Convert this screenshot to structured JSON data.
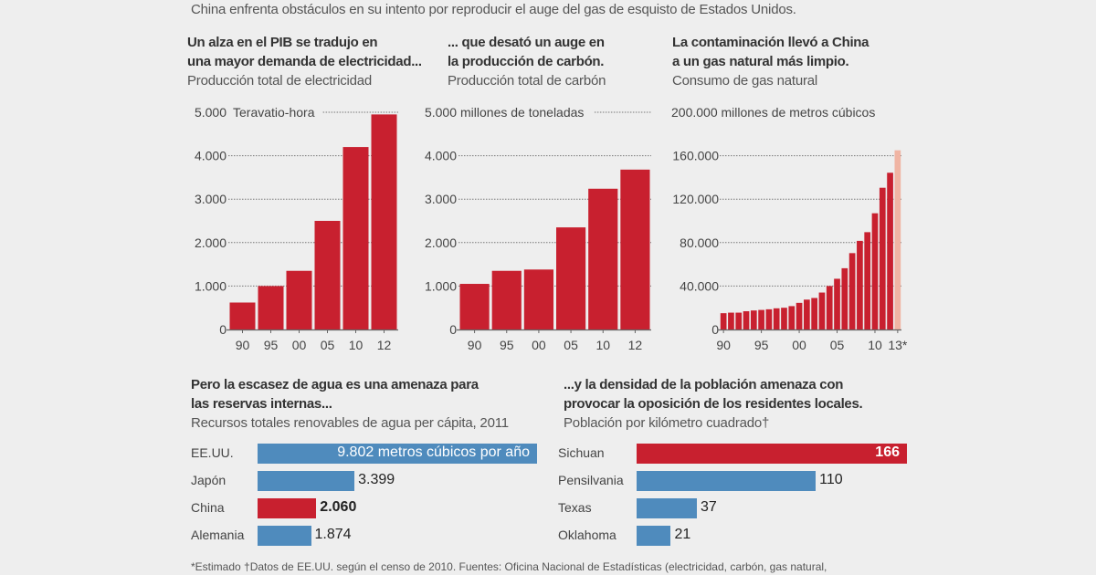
{
  "subhead": "China enfrenta obstáculos en su intento por reproducir el auge del gas de esquisto de Estados Unidos.",
  "colors": {
    "red": "#c8202f",
    "red_light": "#f0b4a3",
    "blue": "#4f8bbd",
    "grid": "#777777",
    "text": "#333333"
  },
  "chart_data": [
    {
      "type": "bar",
      "title": "Un alza en el PIB se tradujo en una mayor demanda de electricidad...",
      "title_lines": [
        "Un alza en el PIB se tradujo en",
        "una mayor demanda de electricidad..."
      ],
      "subtitle": "Producción total de electricidad",
      "unit_label": "Teravatio-hora",
      "categories": [
        "90",
        "95",
        "00",
        "05",
        "10",
        "12"
      ],
      "values": [
        620,
        1000,
        1350,
        2500,
        4200,
        4950
      ],
      "yticks": [
        "0",
        "1.000",
        "2.000",
        "3.000",
        "4.000",
        "5.000"
      ],
      "ytick_values": [
        0,
        1000,
        2000,
        3000,
        4000,
        5000
      ],
      "ylim": [
        0,
        5000
      ],
      "grid": true,
      "xlabel": "",
      "ylabel": "Teravatio-hora"
    },
    {
      "type": "bar",
      "title": "... que desató un auge en la producción de carbón.",
      "title_lines": [
        "... que desató un auge en",
        "la producción de carbón."
      ],
      "subtitle": "Producción total de carbón",
      "unit_label": "millones de toneladas",
      "categories": [
        "90",
        "95",
        "00",
        "05",
        "10",
        "12"
      ],
      "values": [
        1050,
        1350,
        1380,
        2350,
        3240,
        3680
      ],
      "yticks": [
        "0",
        "1.000",
        "2.000",
        "3.000",
        "4.000",
        "5.000"
      ],
      "ytick_values": [
        0,
        1000,
        2000,
        3000,
        4000,
        5000
      ],
      "ylim": [
        0,
        5000
      ],
      "grid": true,
      "xlabel": "",
      "ylabel": "millones de toneladas"
    },
    {
      "type": "bar",
      "title": "La contaminación llevó a China a un gas natural más limpio.",
      "title_lines": [
        "La contaminación llevó a China",
        "a un gas natural más limpio."
      ],
      "subtitle": "Consumo de gas natural",
      "unit_label": "millones de metros cúbicos",
      "categories": [
        "1990",
        "1991",
        "1992",
        "1993",
        "1994",
        "1995",
        "1996",
        "1997",
        "1998",
        "1999",
        "2000",
        "2001",
        "2002",
        "2003",
        "2004",
        "2005",
        "2006",
        "2007",
        "2008",
        "2009",
        "2010",
        "2011",
        "2012",
        "2013*"
      ],
      "xtick_labels": [
        {
          "index": 0,
          "label": "90"
        },
        {
          "index": 5,
          "label": "95"
        },
        {
          "index": 10,
          "label": "00"
        },
        {
          "index": 15,
          "label": "05"
        },
        {
          "index": 20,
          "label": "10"
        },
        {
          "index": 23,
          "label": "13*"
        }
      ],
      "values": [
        15000,
        15500,
        15500,
        16800,
        17500,
        18000,
        18600,
        19500,
        20000,
        21500,
        24500,
        27500,
        29000,
        34000,
        40000,
        46700,
        56400,
        70300,
        81600,
        89600,
        107000,
        130500,
        144300,
        165000
      ],
      "estimated": [
        false,
        false,
        false,
        false,
        false,
        false,
        false,
        false,
        false,
        false,
        false,
        false,
        false,
        false,
        false,
        false,
        false,
        false,
        false,
        false,
        false,
        false,
        false,
        true
      ],
      "yticks": [
        "0",
        "40.000",
        "80.000",
        "120.000",
        "160.000",
        "200.000"
      ],
      "ytick_values": [
        0,
        40000,
        80000,
        120000,
        160000,
        200000
      ],
      "ylim": [
        0,
        200000
      ],
      "grid": true,
      "xlabel": "",
      "ylabel": "millones de metros cúbicos"
    },
    {
      "type": "bar",
      "orientation": "horizontal",
      "title": "Pero la escasez de agua es una amenaza para las reservas internas...",
      "title_lines": [
        "Pero la escasez de agua es una amenaza para",
        "las reservas internas..."
      ],
      "subtitle": "Recursos totales renovables de agua per cápita, 2011",
      "categories": [
        "EE.UU.",
        "Japón",
        "China",
        "Alemania"
      ],
      "values": [
        9802,
        3399,
        2060,
        1874
      ],
      "value_labels": [
        "9.802 metros cúbicos por año",
        "3.399",
        "2.060",
        "1.874"
      ],
      "highlight": [
        false,
        false,
        true,
        false
      ],
      "xlim": [
        0,
        9802
      ]
    },
    {
      "type": "bar",
      "orientation": "horizontal",
      "title": "...y la densidad de la población amenaza con provocar la oposición de los residentes locales.",
      "title_lines": [
        "...y la densidad de la población amenaza con",
        "provocar la oposición de los residentes locales."
      ],
      "subtitle": "Población por kilómetro cuadrado†",
      "categories": [
        "Sichuan",
        "Pensilvania",
        "Texas",
        "Oklahoma"
      ],
      "values": [
        166,
        110,
        37,
        21
      ],
      "value_labels": [
        "166",
        "110",
        "37",
        "21"
      ],
      "highlight": [
        true,
        false,
        false,
        false
      ],
      "xlim": [
        0,
        166
      ]
    }
  ],
  "footnote": "*Estimado †Datos de EE.UU. según el censo de 2010. Fuentes: Oficina Nacional de Estadísticas (electricidad, carbón, gas natural,"
}
